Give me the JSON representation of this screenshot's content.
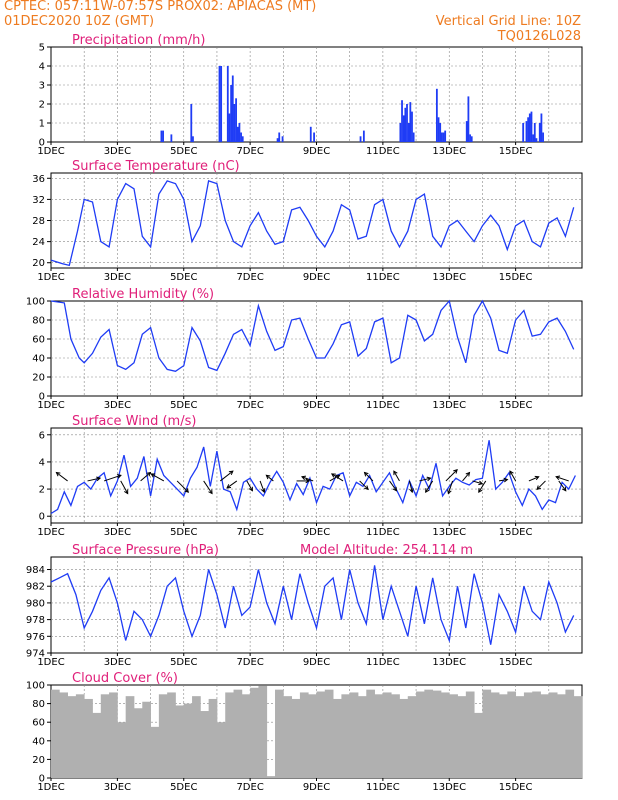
{
  "header": {
    "line1_left": "CPTEC:  057:11W-07:57S  PROX02: APIACAS (MT)",
    "line2_left": "01DEC2020 10Z (GMT)",
    "line2_right": "Vertical Grid Line: 10Z",
    "line3_right": "TQ0126L028"
  },
  "x_ticks": [
    "1DEC",
    "3DEC",
    "5DEC",
    "7DEC",
    "9DEC",
    "11DEC",
    "13DEC",
    "15DEC"
  ],
  "chart_data": [
    {
      "type": "bar",
      "title": "Precipitation (mm/h)",
      "ylim": [
        0,
        5
      ],
      "yticks": [
        "0",
        "1",
        "2",
        "3",
        "4",
        "5"
      ],
      "color": "#1f3cf5",
      "x": [
        3.3,
        3.35,
        3.6,
        4.2,
        4.25,
        5.05,
        5.1,
        5.3,
        5.35,
        5.4,
        5.45,
        5.5,
        5.55,
        5.6,
        5.65,
        5.7,
        5.75,
        6.8,
        6.85,
        6.95,
        7.8,
        7.9,
        9.3,
        9.4,
        10.5,
        10.55,
        10.6,
        10.65,
        10.7,
        10.75,
        10.8,
        10.85,
        10.9,
        11.6,
        11.65,
        11.7,
        11.75,
        11.8,
        11.85,
        12.5,
        12.55,
        12.6,
        12.65,
        14.2,
        14.3,
        14.35,
        14.4,
        14.45,
        14.5,
        14.55,
        14.6,
        14.7,
        14.75,
        14.8
      ],
      "values": [
        0.6,
        0.6,
        0.4,
        2.0,
        0.3,
        4.0,
        4.0,
        4.0,
        1.5,
        3.0,
        3.5,
        2.0,
        2.3,
        0.8,
        1.0,
        0.5,
        0.3,
        0.2,
        0.5,
        0.3,
        0.8,
        0.5,
        0.3,
        0.6,
        1.0,
        2.2,
        1.4,
        1.8,
        2.0,
        1.0,
        2.1,
        1.6,
        0.5,
        2.8,
        1.3,
        1.0,
        0.5,
        0.5,
        0.6,
        1.1,
        2.4,
        0.4,
        0.3,
        1.0,
        1.1,
        1.3,
        1.5,
        1.6,
        0.4,
        1.0,
        0.2,
        1.0,
        1.5,
        0.5
      ]
    },
    {
      "type": "line",
      "title": "Surface Temperature (nC)",
      "ylim": [
        19,
        37
      ],
      "yticks": [
        "20",
        "24",
        "28",
        "32",
        "36"
      ],
      "color": "#1f3cf5",
      "x": [
        0,
        0.35,
        0.55,
        0.8,
        1.0,
        1.25,
        1.5,
        1.75,
        2.0,
        2.25,
        2.5,
        2.75,
        3.0,
        3.25,
        3.5,
        3.75,
        4.0,
        4.25,
        4.5,
        4.75,
        5.0,
        5.25,
        5.5,
        5.75,
        6.0,
        6.25,
        6.5,
        6.75,
        7.0,
        7.25,
        7.5,
        7.75,
        8.0,
        8.25,
        8.5,
        8.75,
        9.0,
        9.25,
        9.5,
        9.75,
        10.0,
        10.25,
        10.5,
        10.75,
        11.0,
        11.25,
        11.5,
        11.75,
        12.0,
        12.25,
        12.5,
        12.75,
        13.0,
        13.25,
        13.5,
        13.75,
        14.0,
        14.25,
        14.5,
        14.75,
        15.0,
        15.25,
        15.5,
        15.75
      ],
      "values": [
        20.5,
        19.8,
        19.5,
        26,
        32,
        31.5,
        24,
        23,
        32,
        35,
        34,
        25,
        23,
        33,
        35.5,
        35,
        32,
        24,
        27,
        35.5,
        35,
        28,
        24,
        23,
        27,
        29.5,
        26,
        23.5,
        24,
        30,
        30.5,
        28,
        25,
        23,
        26,
        31,
        30,
        24.5,
        25,
        31,
        32,
        26,
        23,
        26,
        32,
        33,
        25,
        23,
        27,
        28,
        26,
        24,
        27,
        29,
        27,
        22.5,
        27,
        28,
        24,
        23,
        27.5,
        28.5,
        25,
        30.5
      ]
    },
    {
      "type": "line",
      "title": "Relative Humidity (%)",
      "ylim": [
        0,
        100
      ],
      "yticks": [
        "0",
        "20",
        "40",
        "60",
        "80",
        "100"
      ],
      "color": "#1f3cf5",
      "x": [
        0,
        0.4,
        0.6,
        0.85,
        1.0,
        1.25,
        1.5,
        1.75,
        2.0,
        2.25,
        2.5,
        2.75,
        3.0,
        3.25,
        3.5,
        3.75,
        4.0,
        4.25,
        4.5,
        4.75,
        5.0,
        5.25,
        5.5,
        5.75,
        6.0,
        6.25,
        6.5,
        6.75,
        7.0,
        7.25,
        7.5,
        7.75,
        8.0,
        8.25,
        8.5,
        8.75,
        9.0,
        9.25,
        9.5,
        9.75,
        10.0,
        10.25,
        10.5,
        10.75,
        11.0,
        11.25,
        11.5,
        11.75,
        12.0,
        12.25,
        12.5,
        12.75,
        13.0,
        13.25,
        13.5,
        13.75,
        14.0,
        14.25,
        14.5,
        14.75,
        15.0,
        15.25,
        15.5,
        15.75
      ],
      "values": [
        100,
        98,
        60,
        40,
        35,
        45,
        62,
        70,
        32,
        28,
        35,
        65,
        72,
        40,
        28,
        26,
        32,
        72,
        58,
        30,
        27,
        45,
        65,
        70,
        53,
        95,
        68,
        48,
        52,
        80,
        82,
        60,
        40,
        40,
        55,
        75,
        78,
        42,
        50,
        78,
        82,
        35,
        40,
        85,
        80,
        58,
        65,
        90,
        100,
        62,
        35,
        85,
        100,
        82,
        48,
        45,
        80,
        90,
        63,
        65,
        78,
        82,
        68,
        49
      ]
    },
    {
      "type": "line",
      "title": "Surface Wind (m/s)",
      "ylim": [
        -0.5,
        6.5
      ],
      "yticks": [
        "0",
        "2",
        "4",
        "6"
      ],
      "color": "#1f3cf5",
      "x": [
        0,
        0.2,
        0.4,
        0.6,
        0.8,
        1.0,
        1.2,
        1.4,
        1.6,
        1.8,
        2.0,
        2.2,
        2.4,
        2.6,
        2.8,
        3.0,
        3.2,
        3.4,
        3.6,
        3.8,
        4.0,
        4.2,
        4.4,
        4.6,
        4.8,
        5.0,
        5.2,
        5.4,
        5.6,
        5.8,
        6.0,
        6.2,
        6.4,
        6.6,
        6.8,
        7.0,
        7.2,
        7.4,
        7.6,
        7.8,
        8.0,
        8.2,
        8.4,
        8.6,
        8.8,
        9.0,
        9.2,
        9.4,
        9.6,
        9.8,
        10.0,
        10.2,
        10.4,
        10.6,
        10.8,
        11.0,
        11.2,
        11.4,
        11.6,
        11.8,
        12.0,
        12.2,
        12.4,
        12.6,
        12.8,
        13.0,
        13.2,
        13.4,
        13.6,
        13.8,
        14.0,
        14.2,
        14.4,
        14.6,
        14.8,
        15.0,
        15.2,
        15.4,
        15.6,
        15.8
      ],
      "values": [
        0.2,
        0.5,
        1.8,
        0.8,
        2.2,
        2.5,
        2.0,
        2.8,
        3.2,
        1.5,
        2.6,
        4.5,
        2.2,
        2.8,
        4.4,
        1.5,
        4.2,
        3.0,
        2.5,
        2.0,
        1.5,
        2.8,
        3.6,
        5.1,
        2.2,
        4.8,
        2.0,
        1.8,
        0.5,
        2.5,
        2.8,
        2.0,
        1.5,
        2.5,
        3.3,
        2.5,
        1.2,
        2.4,
        1.6,
        2.8,
        1.0,
        2.2,
        2.0,
        3.0,
        3.2,
        1.5,
        2.5,
        2.2,
        3.0,
        1.8,
        2.5,
        3.2,
        2.0,
        1.0,
        2.6,
        1.5,
        3.0,
        2.0,
        3.9,
        1.5,
        2.2,
        2.8,
        2.5,
        2.3,
        2.7,
        2.8,
        5.6,
        2.0,
        2.5,
        3.2,
        1.8,
        0.8,
        2.0,
        1.5,
        0.5,
        1.2,
        1.0,
        2.5,
        2.0,
        3.0
      ]
    },
    {
      "type": "line",
      "title": "Surface Pressure (hPa)",
      "annotation": "Model Altitude: 254.114 m",
      "ylim": [
        974,
        985.5
      ],
      "yticks": [
        "974",
        "976",
        "978",
        "980",
        "982",
        "984"
      ],
      "color": "#1f3cf5",
      "x": [
        0,
        0.25,
        0.5,
        0.75,
        1.0,
        1.25,
        1.5,
        1.75,
        2.0,
        2.25,
        2.5,
        2.75,
        3.0,
        3.25,
        3.5,
        3.75,
        4.0,
        4.25,
        4.5,
        4.75,
        5.0,
        5.25,
        5.5,
        5.75,
        6.0,
        6.25,
        6.5,
        6.75,
        7.0,
        7.25,
        7.5,
        7.75,
        8.0,
        8.25,
        8.5,
        8.75,
        9.0,
        9.25,
        9.5,
        9.75,
        10.0,
        10.25,
        10.5,
        10.75,
        11.0,
        11.25,
        11.5,
        11.75,
        12.0,
        12.25,
        12.5,
        12.75,
        13.0,
        13.25,
        13.5,
        13.75,
        14.0,
        14.25,
        14.5,
        14.75,
        15.0,
        15.25,
        15.5,
        15.75
      ],
      "values": [
        982.5,
        983,
        983.5,
        981,
        977,
        979,
        981.5,
        983,
        980,
        975.5,
        979,
        978,
        976,
        978.5,
        982,
        983,
        979,
        976,
        978.5,
        984,
        981,
        977,
        982,
        978.5,
        979.5,
        984,
        980,
        977.5,
        982,
        978,
        983.5,
        980,
        977,
        982,
        983,
        978,
        984,
        980,
        977.5,
        984.5,
        978,
        982,
        979,
        976,
        982,
        977.5,
        983,
        978,
        975.5,
        982,
        977,
        983.5,
        980,
        975,
        981,
        979,
        976.5,
        982,
        979,
        978,
        982.5,
        980,
        976.5,
        978.5
      ]
    },
    {
      "type": "bar",
      "title": "Cloud Cover (%)",
      "ylim": [
        0,
        100
      ],
      "yticks": [
        "0",
        "20",
        "40",
        "60",
        "80",
        "100"
      ],
      "color": "#b0b0b0",
      "x": [
        0,
        0.25,
        0.5,
        0.75,
        1.0,
        1.25,
        1.5,
        1.75,
        2.0,
        2.25,
        2.5,
        2.75,
        3.0,
        3.25,
        3.5,
        3.75,
        4.0,
        4.25,
        4.5,
        4.75,
        5.0,
        5.25,
        5.5,
        5.75,
        6.0,
        6.25,
        6.5,
        6.75,
        7.0,
        7.25,
        7.5,
        7.75,
        8.0,
        8.25,
        8.5,
        8.75,
        9.0,
        9.25,
        9.5,
        9.75,
        10.0,
        10.25,
        10.5,
        10.75,
        11.0,
        11.25,
        11.5,
        11.75,
        12.0,
        12.25,
        12.5,
        12.75,
        13.0,
        13.25,
        13.5,
        13.75,
        14.0,
        14.25,
        14.5,
        14.75,
        15.0,
        15.25,
        15.5,
        15.75
      ],
      "values": [
        95,
        92,
        88,
        90,
        85,
        70,
        90,
        92,
        60,
        88,
        75,
        82,
        55,
        90,
        92,
        78,
        80,
        88,
        72,
        85,
        60,
        92,
        95,
        90,
        97,
        99,
        2,
        95,
        88,
        85,
        92,
        90,
        93,
        95,
        85,
        90,
        92,
        88,
        95,
        90,
        92,
        90,
        85,
        88,
        93,
        95,
        94,
        92,
        90,
        88,
        93,
        70,
        95,
        92,
        90,
        93,
        88,
        92,
        93,
        90,
        92,
        90,
        95,
        88
      ]
    }
  ],
  "wind_vectors": {
    "x": [
      0.5,
      1.1,
      1.6,
      2.1,
      2.7,
      3.4,
      3.8,
      4.6,
      5.1,
      5.6,
      5.9,
      6.3,
      6.7,
      7.4,
      7.9,
      8.4,
      8.8,
      9.3,
      9.7,
      10.2,
      10.5,
      10.8,
      11.1,
      11.5,
      11.9,
      12.1,
      12.4,
      12.7,
      13.1,
      13.5,
      14.0,
      14.4,
      14.9,
      15.3,
      15.6
    ],
    "u": [
      -0.8,
      0.9,
      1.2,
      0.5,
      0.7,
      -0.9,
      0.8,
      0.6,
      0.9,
      -0.7,
      0.4,
      0.3,
      -0.5,
      0.9,
      -0.8,
      0.7,
      -0.8,
      0.6,
      -0.6,
      0.5,
      -0.4,
      0.2,
      0.8,
      -0.5,
      0.8,
      -0.3,
      0.5,
      0.7,
      -0.5,
      0.6,
      -0.4,
      0.7,
      -0.6,
      0.5,
      -0.9
    ],
    "v": [
      0.6,
      0.2,
      0.4,
      -0.9,
      0.6,
      0.5,
      -0.8,
      -0.9,
      0.7,
      -0.5,
      -0.7,
      -0.8,
      0.4,
      0.0,
      0.3,
      0.4,
      0.5,
      -0.6,
      0.6,
      -0.7,
      0.7,
      -0.8,
      0.2,
      -0.8,
      0.8,
      -0.9,
      0.6,
      -0.2,
      -0.8,
      0.1,
      0.7,
      0.3,
      -0.6,
      -0.7,
      0.3
    ]
  }
}
